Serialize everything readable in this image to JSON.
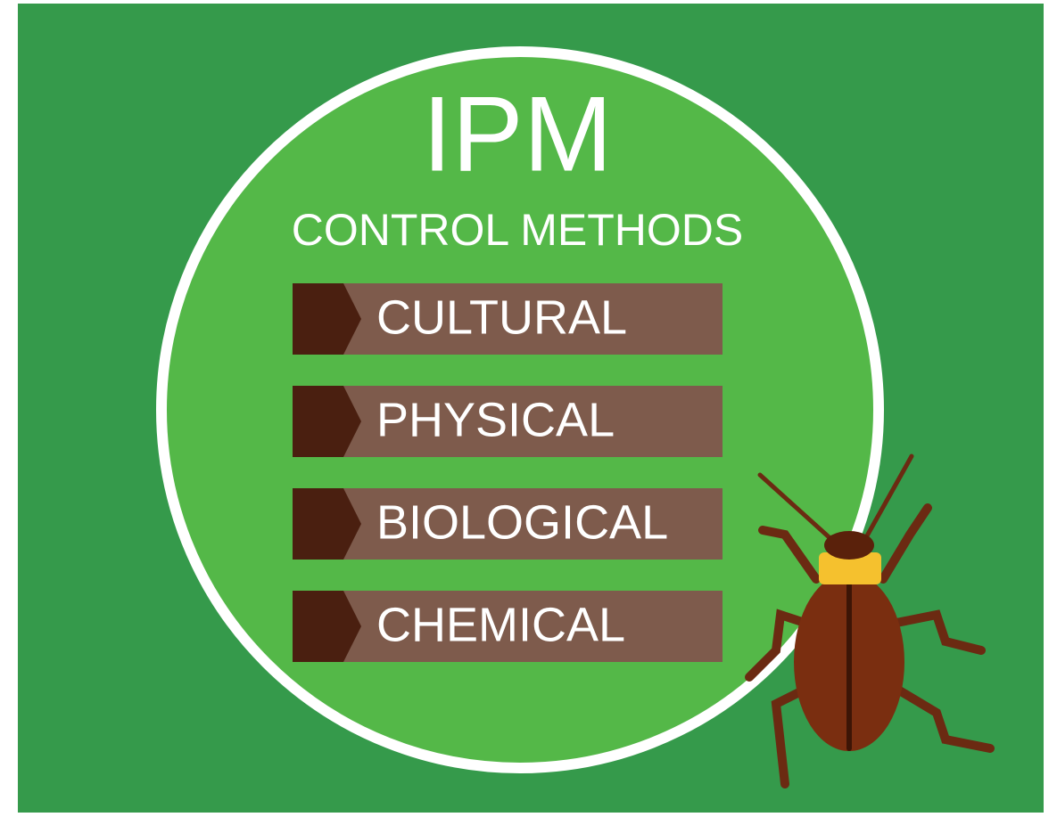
{
  "title": "IPM",
  "subtitle": "CONTROL METHODS",
  "methods": [
    "CULTURAL",
    "PHYSICAL",
    "BIOLOGICAL",
    "CHEMICAL"
  ]
}
